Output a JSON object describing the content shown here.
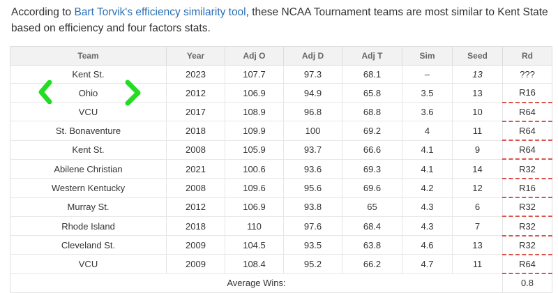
{
  "intro": {
    "prefix": "According to ",
    "link": "Bart Torvik's efficiency similarity tool",
    "suffix": ", these NCAA Tournament teams are most similar to Kent State based on efficiency and four factors stats."
  },
  "table": {
    "headers": [
      "Team",
      "Year",
      "Adj O",
      "Adj D",
      "Adj T",
      "Sim",
      "Seed",
      "Rd"
    ],
    "rows": [
      {
        "team": "Kent St.",
        "year": "2023",
        "adj_o": "107.7",
        "adj_d": "97.3",
        "adj_t": "68.1",
        "sim": "–",
        "seed": "13",
        "rd": "???"
      },
      {
        "team": "Ohio",
        "year": "2012",
        "adj_o": "106.9",
        "adj_d": "94.9",
        "adj_t": "65.8",
        "sim": "3.5",
        "seed": "13",
        "rd": "R16"
      },
      {
        "team": "VCU",
        "year": "2017",
        "adj_o": "108.9",
        "adj_d": "96.8",
        "adj_t": "68.8",
        "sim": "3.6",
        "seed": "10",
        "rd": "R64"
      },
      {
        "team": "St. Bonaventure",
        "year": "2018",
        "adj_o": "109.9",
        "adj_d": "100",
        "adj_t": "69.2",
        "sim": "4",
        "seed": "11",
        "rd": "R64"
      },
      {
        "team": "Kent St.",
        "year": "2008",
        "adj_o": "105.9",
        "adj_d": "93.7",
        "adj_t": "66.6",
        "sim": "4.1",
        "seed": "9",
        "rd": "R64"
      },
      {
        "team": "Abilene Christian",
        "year": "2021",
        "adj_o": "100.6",
        "adj_d": "93.6",
        "adj_t": "69.3",
        "sim": "4.1",
        "seed": "14",
        "rd": "R32"
      },
      {
        "team": "Western Kentucky",
        "year": "2008",
        "adj_o": "109.6",
        "adj_d": "95.6",
        "adj_t": "69.6",
        "sim": "4.2",
        "seed": "12",
        "rd": "R16"
      },
      {
        "team": "Murray St.",
        "year": "2012",
        "adj_o": "106.9",
        "adj_d": "93.8",
        "adj_t": "65",
        "sim": "4.3",
        "seed": "6",
        "rd": "R32"
      },
      {
        "team": "Rhode Island",
        "year": "2018",
        "adj_o": "110",
        "adj_d": "97.6",
        "adj_t": "68.4",
        "sim": "4.3",
        "seed": "7",
        "rd": "R32"
      },
      {
        "team": "Cleveland St.",
        "year": "2009",
        "adj_o": "104.5",
        "adj_d": "93.5",
        "adj_t": "63.8",
        "sim": "4.6",
        "seed": "13",
        "rd": "R32"
      },
      {
        "team": "VCU",
        "year": "2009",
        "adj_o": "108.4",
        "adj_d": "95.2",
        "adj_t": "66.2",
        "sim": "4.7",
        "seed": "11",
        "rd": "R64"
      }
    ],
    "footer": {
      "label": "Average Wins:",
      "value": "0.8"
    }
  },
  "annotation": {
    "color": "#22dd22",
    "left_glyph": "‹",
    "right_glyph": "›"
  }
}
